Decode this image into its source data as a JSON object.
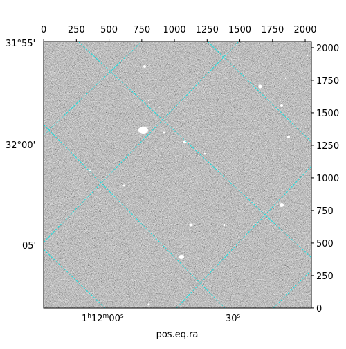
{
  "chart_data": {
    "type": "image",
    "xlim": [
      -0.5,
      2047.5
    ],
    "ylim": [
      -0.5,
      2047.5
    ],
    "xticks": [
      0,
      250,
      500,
      750,
      1000,
      1250,
      1500,
      1750,
      2000
    ],
    "yticks": [
      0,
      250,
      500,
      750,
      1000,
      1250,
      1500,
      1750,
      2000
    ],
    "dec_labels": [
      "31°55'",
      "32°00'",
      "05'"
    ],
    "ra_labels": [
      {
        "h": "1",
        "hs": "h",
        "m": "12",
        "ms": "m",
        "s": "00",
        "ss": "s"
      },
      {
        "s": "30",
        "ss": "s"
      }
    ],
    "xlabel": "pos.eq.ra"
  }
}
